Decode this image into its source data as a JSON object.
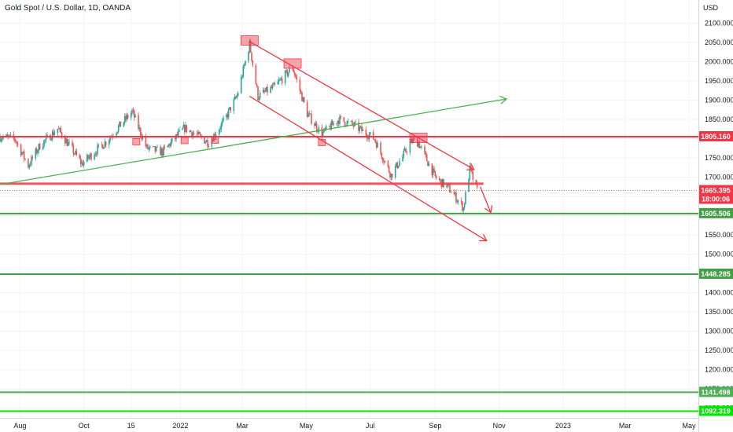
{
  "chart_data": {
    "type": "candlestick",
    "title": "Gold Spot / U.S. Dollar, 1D, OANDA",
    "y_unit": "USD",
    "ylim": [
      1075,
      2160
    ],
    "xlim": [
      "2021-07-13",
      "2023-05-10"
    ],
    "y_ticks": [
      "2100.000",
      "2050.000",
      "2000.000",
      "1950.000",
      "1900.000",
      "1850.000",
      "1800.000",
      "1750.000",
      "1700.000",
      "1650.000",
      "1600.000",
      "1550.000",
      "1500.000",
      "1450.000",
      "1400.000",
      "1350.000",
      "1300.000",
      "1250.000",
      "1200.000",
      "1150.000",
      "1100.000"
    ],
    "x_ticks": [
      {
        "label": "Aug",
        "date": "2021-08-01"
      },
      {
        "label": "Oct",
        "date": "2021-10-01"
      },
      {
        "label": "15",
        "date": "2021-11-15"
      },
      {
        "label": "2022",
        "date": "2022-01-01"
      },
      {
        "label": "Mar",
        "date": "2022-03-01"
      },
      {
        "label": "May",
        "date": "2022-05-01"
      },
      {
        "label": "Jul",
        "date": "2022-07-01"
      },
      {
        "label": "Sep",
        "date": "2022-09-01"
      },
      {
        "label": "Nov",
        "date": "2022-11-01"
      },
      {
        "label": "2023",
        "date": "2023-01-01"
      },
      {
        "label": "Mar",
        "date": "2023-03-01"
      },
      {
        "label": "May",
        "date": "2023-05-01"
      }
    ],
    "price_path": [
      [
        "2021-07-13",
        1805
      ],
      [
        "2021-07-27",
        1800
      ],
      [
        "2021-08-09",
        1730
      ],
      [
        "2021-08-20",
        1782
      ],
      [
        "2021-09-06",
        1826
      ],
      [
        "2021-09-29",
        1735
      ],
      [
        "2021-10-22",
        1792
      ],
      [
        "2021-11-16",
        1870
      ],
      [
        "2021-11-30",
        1775
      ],
      [
        "2021-12-15",
        1765
      ],
      [
        "2022-01-05",
        1828
      ],
      [
        "2022-01-28",
        1790
      ],
      [
        "2022-02-10",
        1838
      ],
      [
        "2022-02-24",
        1910
      ],
      [
        "2022-03-08",
        2045
      ],
      [
        "2022-03-16",
        1910
      ],
      [
        "2022-04-01",
        1935
      ],
      [
        "2022-04-18",
        1985
      ],
      [
        "2022-05-02",
        1865
      ],
      [
        "2022-05-16",
        1812
      ],
      [
        "2022-06-01",
        1850
      ],
      [
        "2022-06-15",
        1835
      ],
      [
        "2022-07-05",
        1800
      ],
      [
        "2022-07-21",
        1705
      ],
      [
        "2022-08-10",
        1795
      ],
      [
        "2022-08-16",
        1790
      ],
      [
        "2022-09-01",
        1700
      ],
      [
        "2022-09-16",
        1665
      ],
      [
        "2022-09-28",
        1620
      ],
      [
        "2022-10-04",
        1720
      ],
      [
        "2022-10-11",
        1665
      ]
    ],
    "horizontal_levels": [
      {
        "value": "1805.160",
        "color": "#f23645"
      },
      {
        "value": "1605.506",
        "color": "#43a047"
      },
      {
        "value": "1448.285",
        "color": "#43a047"
      },
      {
        "value": "1141.498",
        "color": "#4caf50"
      },
      {
        "value": "1092.319",
        "color": "#00e600"
      }
    ],
    "current_price": {
      "value": "1665.395",
      "countdown": "18:00:06",
      "color": "#f23645"
    },
    "resistance_zone": {
      "y": 1683,
      "x_end": "2022-10-17",
      "color": "#f23645"
    },
    "trendlines": [
      {
        "color": "#4caf50",
        "from": [
          "2021-07-13",
          1681
        ],
        "to": [
          "2022-11-08",
          1903
        ],
        "arrow": true
      },
      {
        "color": "#f23645",
        "from": [
          "2022-03-08",
          2052
        ],
        "to": [
          "2022-10-08",
          1720
        ],
        "arrow": true
      },
      {
        "color": "#f23645",
        "from": [
          "2022-03-08",
          1910
        ],
        "to": [
          "2022-10-20",
          1535
        ],
        "arrow": true
      },
      {
        "color": "#f23645",
        "from": [
          "2022-10-14",
          1675
        ],
        "to": [
          "2022-10-24",
          1608
        ],
        "arrow": true
      }
    ],
    "markers": [
      {
        "date": "2022-03-08",
        "price": 2055,
        "size": "large"
      },
      {
        "date": "2022-04-18",
        "price": 1995,
        "size": "large"
      },
      {
        "date": "2022-08-16",
        "price": 1802,
        "size": "large"
      },
      {
        "date": "2021-11-20",
        "price": 1792,
        "size": "small"
      },
      {
        "date": "2022-01-05",
        "price": 1795,
        "size": "small"
      },
      {
        "date": "2022-02-03",
        "price": 1796,
        "size": "small"
      },
      {
        "date": "2022-05-16",
        "price": 1790,
        "size": "small"
      }
    ],
    "colors": {
      "up": "#26a69a",
      "down": "#ef5350",
      "grid": "#f0f3fa",
      "axis_text": "#131722"
    }
  }
}
